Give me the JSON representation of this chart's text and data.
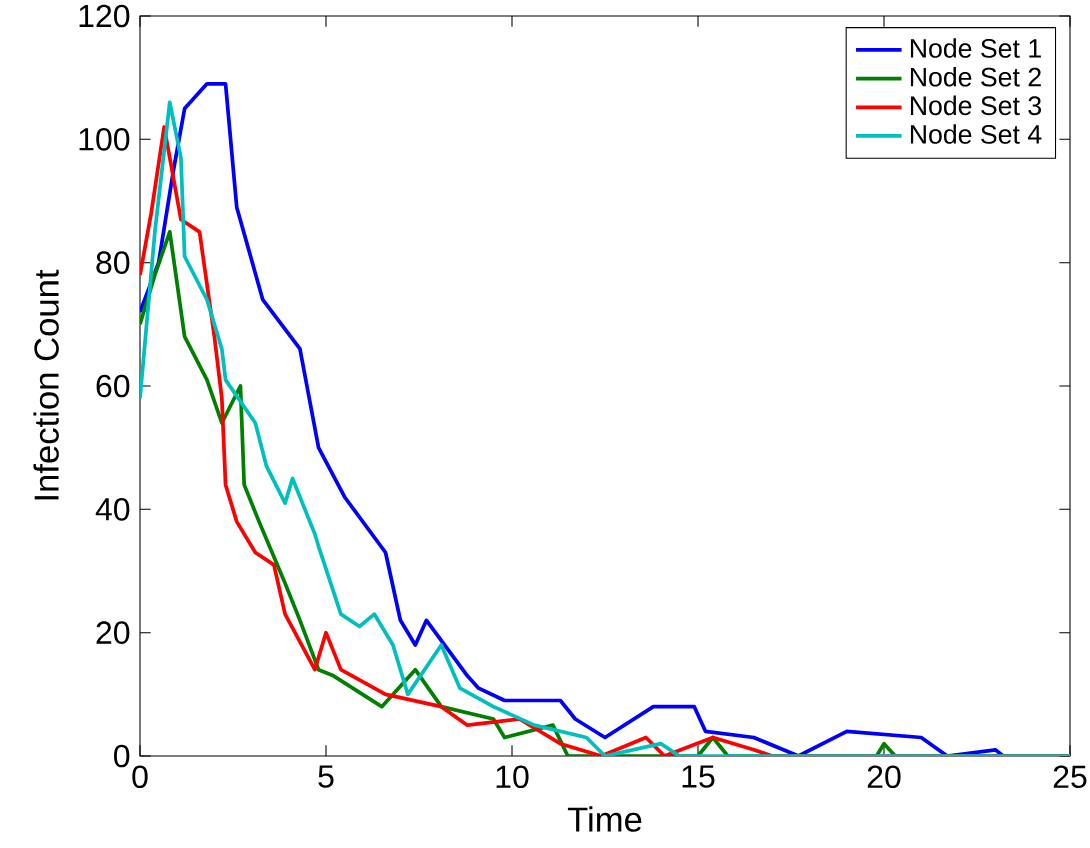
{
  "chart_data": {
    "type": "line",
    "xlabel": "Time",
    "ylabel": "Infection Count",
    "xlim": [
      0,
      25
    ],
    "ylim": [
      0,
      120
    ],
    "xticks": [
      0,
      5,
      10,
      15,
      20,
      25
    ],
    "yticks": [
      0,
      20,
      40,
      60,
      80,
      100,
      120
    ],
    "legend": "top right",
    "grid": false,
    "marker": "none",
    "line_style": "solid",
    "series": [
      {
        "name": "Node Set 1",
        "color": "#0000ff",
        "x": [
          0,
          0.5,
          0.9,
          1.2,
          1.8,
          2.3,
          2.6,
          3.3,
          4.3,
          4.8,
          5.5,
          6.6,
          7,
          7.4,
          7.7,
          8.8,
          9.1,
          9.8,
          11.3,
          11.7,
          12.5,
          13.8,
          14.9,
          15.2,
          16.5,
          17.7,
          19,
          21,
          21.7,
          23,
          23.2,
          25
        ],
        "values": [
          72,
          80,
          95,
          105,
          109,
          109,
          89,
          74,
          66,
          50,
          42,
          33,
          22,
          18,
          22,
          13,
          11,
          9,
          9,
          6,
          3,
          8,
          8,
          4,
          3,
          0,
          4,
          3,
          0,
          1,
          0,
          0
        ]
      },
      {
        "name": "Node Set 2",
        "color": "#008000",
        "x": [
          0,
          0.4,
          0.8,
          1.2,
          1.8,
          2.2,
          2.7,
          2.8,
          3.2,
          3.9,
          4.3,
          4.8,
          5.2,
          6.5,
          7.4,
          8.1,
          9.5,
          9.8,
          11.1,
          11.5,
          15,
          15.4,
          15.8,
          19.8,
          20,
          20.3,
          25
        ],
        "values": [
          70,
          78,
          85,
          68,
          61,
          54,
          60,
          44,
          38,
          28,
          22,
          14,
          13,
          8,
          14,
          8,
          6,
          3,
          5,
          0,
          0,
          3,
          0,
          0,
          2,
          0,
          0
        ]
      },
      {
        "name": "Node Set 3",
        "color": "#ff0000",
        "x": [
          0,
          0.3,
          0.65,
          1.1,
          1.6,
          2,
          2.2,
          2.3,
          2.6,
          3.1,
          3.6,
          3.9,
          4.7,
          5,
          5.4,
          6.6,
          8.1,
          8.8,
          10.2,
          11.3,
          12.4,
          13.6,
          14.1,
          15.4,
          16.5,
          17,
          25
        ],
        "values": [
          78,
          88,
          102,
          87,
          85,
          68,
          58,
          44,
          38,
          33,
          31,
          23,
          14,
          20,
          14,
          10,
          8,
          5,
          6,
          2,
          0,
          3,
          0,
          3,
          1,
          0,
          0
        ]
      },
      {
        "name": "Node Set 4",
        "color": "#00bfbf",
        "x": [
          0,
          0.4,
          0.8,
          1.1,
          1.2,
          1.8,
          2.2,
          2.3,
          3.1,
          3.4,
          3.9,
          4.1,
          4.7,
          4.8,
          5.4,
          5.9,
          6.3,
          6.8,
          7.2,
          8.1,
          8.6,
          9.5,
          10.6,
          12,
          12.5,
          14,
          14.5,
          25
        ],
        "values": [
          58,
          85,
          106,
          97,
          81,
          74,
          66,
          61,
          54,
          47,
          41,
          45,
          36,
          34,
          23,
          21,
          23,
          18,
          10,
          18,
          11,
          8,
          5,
          3,
          0,
          2,
          0,
          0
        ]
      }
    ]
  }
}
